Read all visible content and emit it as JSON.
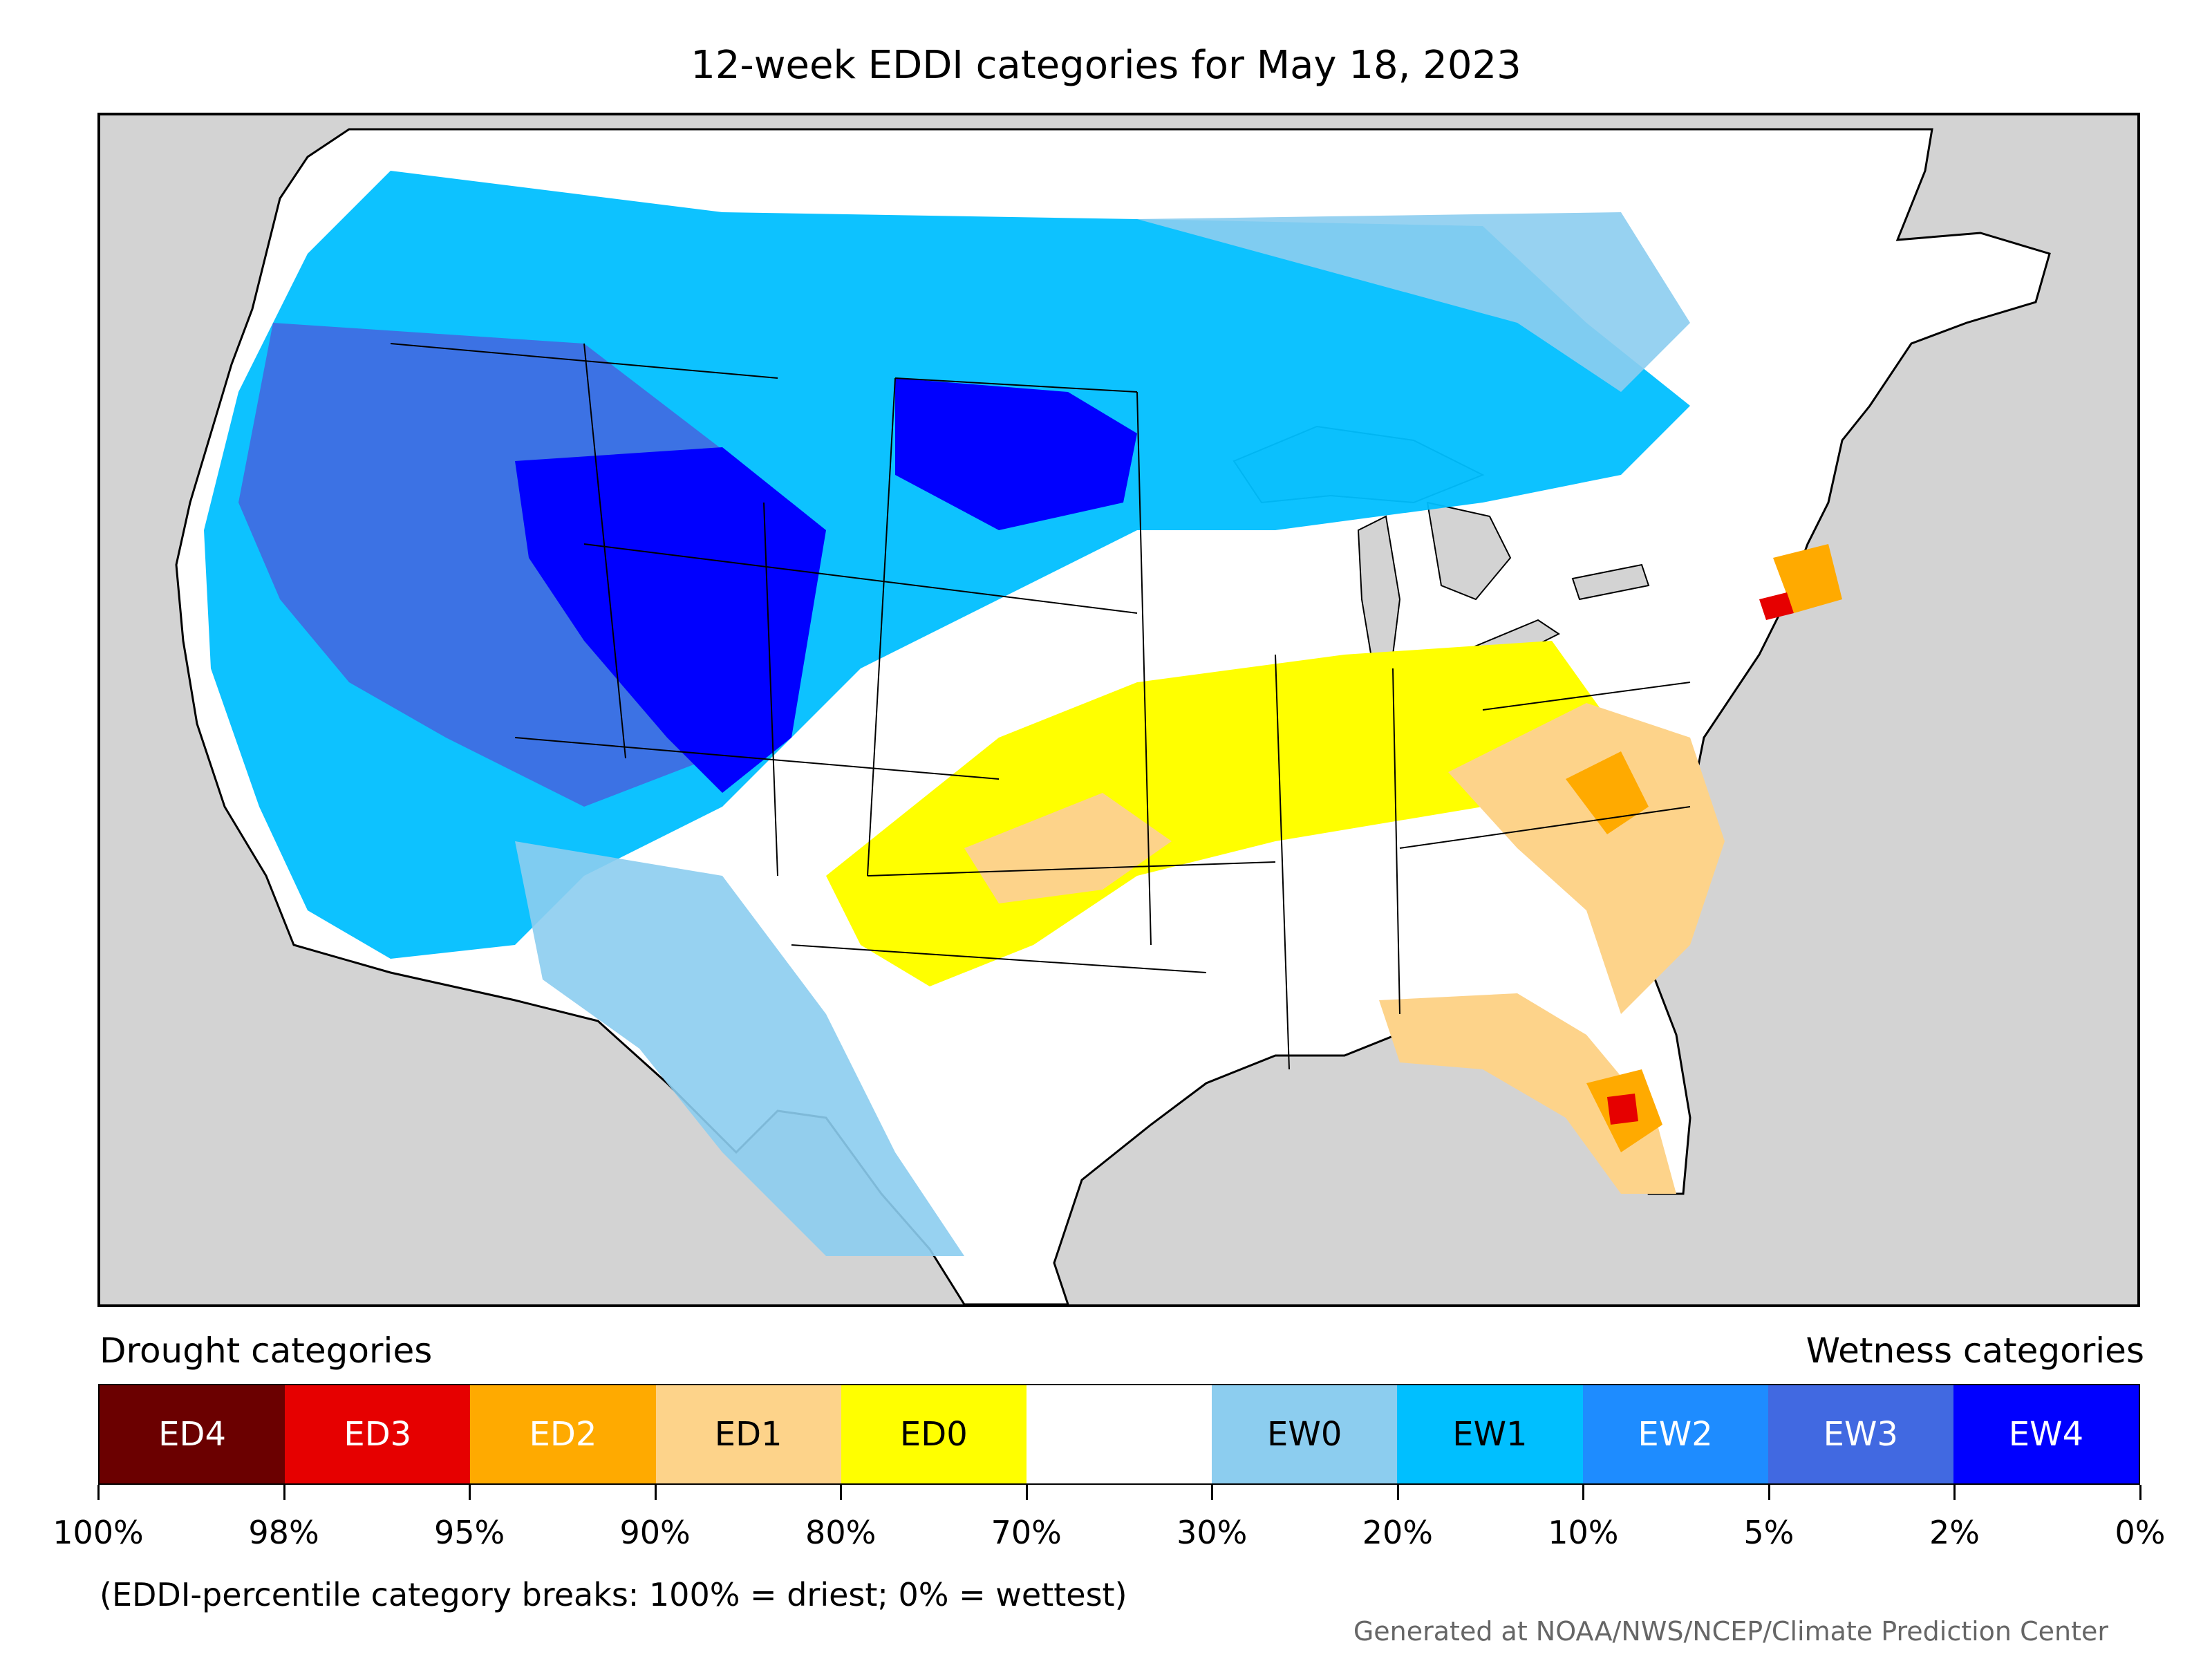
{
  "title": "12-week EDDI categories for May 18, 2023",
  "legend": {
    "drought_label": "Drought categories",
    "wetness_label": "Wetness categories",
    "categories": [
      {
        "label": "ED4",
        "color": "#6b0000",
        "text_color": "#ffffff"
      },
      {
        "label": "ED3",
        "color": "#e60000",
        "text_color": "#ffffff"
      },
      {
        "label": "ED2",
        "color": "#ffaa00",
        "text_color": "#ffffff"
      },
      {
        "label": "ED1",
        "color": "#fdd38a",
        "text_color": "#000000"
      },
      {
        "label": "ED0",
        "color": "#ffff00",
        "text_color": "#000000"
      },
      {
        "label": "",
        "color": "#ffffff",
        "text_color": "#000000"
      },
      {
        "label": "EW0",
        "color": "#8ccdef",
        "text_color": "#000000"
      },
      {
        "label": "EW1",
        "color": "#00bfff",
        "text_color": "#000000"
      },
      {
        "label": "EW2",
        "color": "#1e8cff",
        "text_color": "#ffffff"
      },
      {
        "label": "EW3",
        "color": "#4169e1",
        "text_color": "#ffffff"
      },
      {
        "label": "EW4",
        "color": "#0000ff",
        "text_color": "#ffffff"
      }
    ],
    "tick_labels": [
      "100%",
      "98%",
      "95%",
      "90%",
      "80%",
      "70%",
      "30%",
      "20%",
      "10%",
      "5%",
      "2%",
      "0%"
    ]
  },
  "note": "(EDDI-percentile category breaks: 100% = driest; 0% = wettest)",
  "credit": "Generated at NOAA/NWS/NCEP/Climate Prediction Center",
  "map": {
    "ocean_color": "#d3d3d3",
    "land_color": "#ffffff",
    "border_color": "#000000"
  }
}
